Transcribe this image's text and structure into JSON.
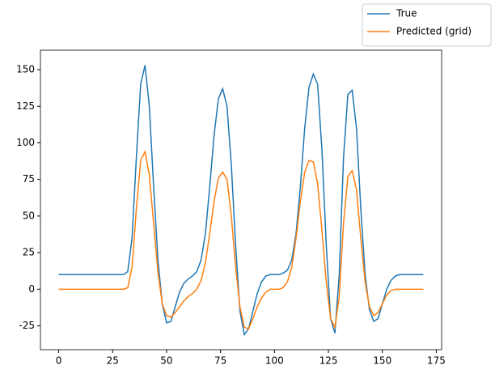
{
  "chart_data": {
    "type": "line",
    "x": [
      0,
      2,
      4,
      6,
      8,
      10,
      12,
      14,
      16,
      18,
      20,
      22,
      24,
      26,
      28,
      30,
      32,
      34,
      36,
      38,
      40,
      42,
      44,
      46,
      48,
      50,
      52,
      54,
      56,
      58,
      60,
      62,
      64,
      66,
      68,
      70,
      72,
      74,
      76,
      78,
      80,
      82,
      84,
      86,
      88,
      90,
      92,
      94,
      96,
      98,
      100,
      102,
      104,
      106,
      108,
      110,
      112,
      114,
      116,
      118,
      120,
      122,
      124,
      126,
      128,
      130,
      132,
      134,
      136,
      138,
      140,
      142,
      144,
      146,
      148,
      150,
      152,
      154,
      156,
      158,
      160,
      162,
      164,
      166,
      168,
      169
    ],
    "series": [
      {
        "name": "True",
        "color": "#1f77b4",
        "values": [
          10,
          10,
          10,
          10,
          10,
          10,
          10,
          10,
          10,
          10,
          10,
          10,
          10,
          10,
          10,
          10,
          12,
          35,
          90,
          140,
          153,
          125,
          70,
          20,
          -10,
          -23,
          -22,
          -12,
          -2,
          4,
          7,
          9,
          12,
          20,
          38,
          70,
          105,
          130,
          137,
          125,
          85,
          30,
          -15,
          -31,
          -27,
          -15,
          -3,
          5,
          9,
          10,
          10,
          10,
          11,
          13,
          20,
          38,
          70,
          110,
          138,
          147,
          140,
          95,
          30,
          -20,
          -30,
          10,
          90,
          133,
          136,
          110,
          55,
          10,
          -14,
          -22,
          -20,
          -10,
          0,
          6,
          9,
          10,
          10,
          10,
          10,
          10,
          10,
          10
        ]
      },
      {
        "name": "Predicted (grid)",
        "color": "#ff7f0e",
        "values": [
          0,
          0,
          0,
          0,
          0,
          0,
          0,
          0,
          0,
          0,
          0,
          0,
          0,
          0,
          0,
          0,
          1,
          15,
          55,
          88,
          94,
          78,
          45,
          12,
          -10,
          -18,
          -19,
          -16,
          -12,
          -8,
          -5,
          -3,
          0,
          6,
          18,
          38,
          60,
          76,
          80,
          75,
          50,
          15,
          -12,
          -26,
          -27,
          -20,
          -12,
          -6,
          -2,
          0,
          0,
          0,
          1,
          5,
          15,
          35,
          60,
          80,
          88,
          87,
          72,
          40,
          5,
          -20,
          -26,
          -5,
          45,
          77,
          81,
          68,
          35,
          5,
          -12,
          -18,
          -16,
          -10,
          -4,
          -1,
          0,
          0,
          0,
          0,
          0,
          0,
          0,
          0
        ]
      }
    ],
    "xlim": [
      -8.45,
      177.45
    ],
    "xticks": [
      0,
      25,
      50,
      75,
      100,
      125,
      150,
      175
    ],
    "ylim": [
      -41.3,
      163.3
    ],
    "yticks": [
      -25,
      0,
      25,
      50,
      75,
      100,
      125,
      150
    ],
    "grid": false,
    "legend": "upper right"
  }
}
